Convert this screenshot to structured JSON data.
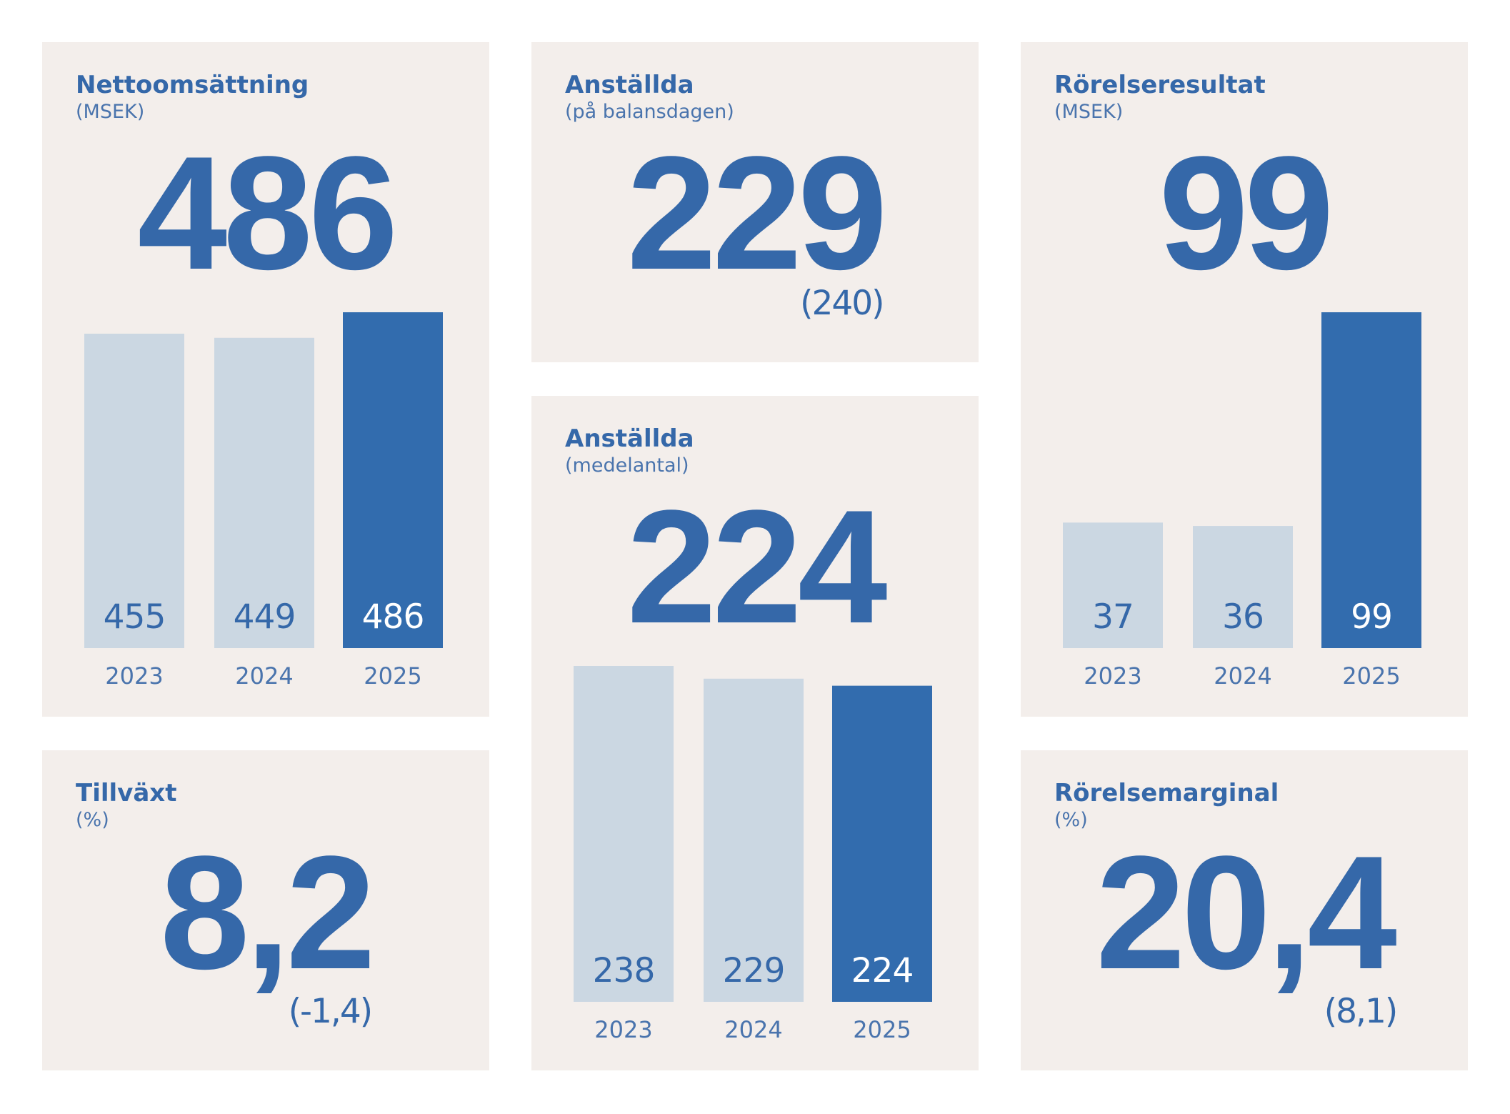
{
  "cards": [
    {
      "title": "Nettoomsättning",
      "subtitle": "(MSEK)",
      "value": "486",
      "chart": {
        "type": "bar",
        "categories": [
          "2023",
          "2024",
          "2025"
        ],
        "values": [
          455,
          449,
          486
        ],
        "colors": [
          "#cbd7e2",
          "#cbd7e2",
          "#326cae"
        ]
      }
    },
    {
      "title": "Anställda",
      "subtitle": "(på balansdagen)",
      "value": "229",
      "previous": "(240)"
    },
    {
      "title": "Rörelseresultat",
      "subtitle": "(MSEK)",
      "value": "99",
      "chart": {
        "type": "bar",
        "categories": [
          "2023",
          "2024",
          "2025"
        ],
        "values": [
          37,
          36,
          99
        ],
        "colors": [
          "#cbd7e2",
          "#cbd7e2",
          "#326cae"
        ]
      }
    },
    {
      "title": "Tillväxt",
      "subtitle": "(%)",
      "value": "8,2",
      "previous": "(-1,4)"
    },
    {
      "title": "Anställda",
      "subtitle": "(medelantal)",
      "value": "224",
      "chart": {
        "type": "bar",
        "categories": [
          "2023",
          "2024",
          "2025"
        ],
        "values": [
          238,
          229,
          224
        ],
        "colors": [
          "#cbd7e2",
          "#cbd7e2",
          "#326cae"
        ]
      }
    },
    {
      "title": "Rörelsemarginal",
      "subtitle": "(%)",
      "value": "20,4",
      "previous": "(8,1)"
    }
  ]
}
